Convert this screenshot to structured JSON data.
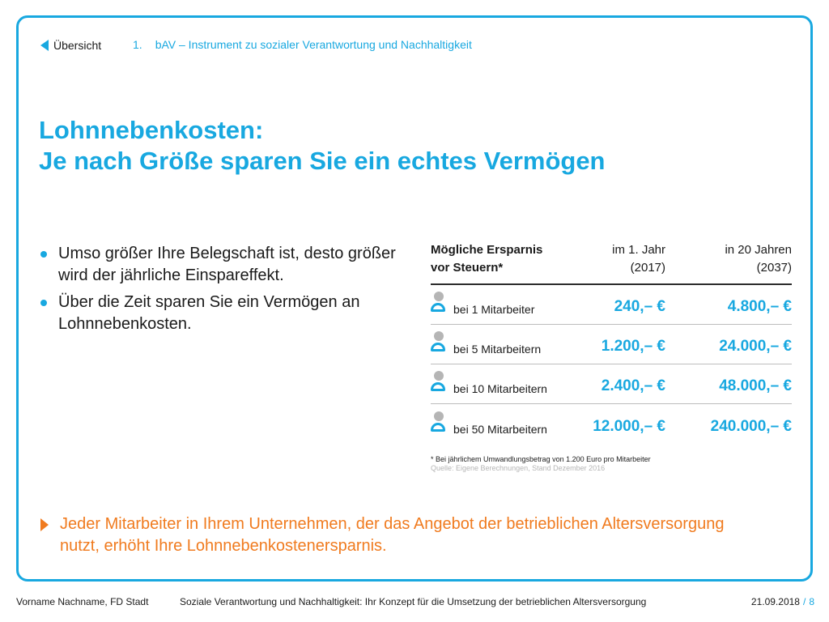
{
  "nav": {
    "back_label": "Übersicht",
    "crumb_number": "1.",
    "crumb_label": "bAV – Instrument zu sozialer Verantwortung und Nachhaltigkeit"
  },
  "title": {
    "line1": "Lohnnebenkosten:",
    "line2": "Je nach Größe sparen Sie ein echtes Vermögen"
  },
  "bullets": [
    "Umso größer Ihre Belegschaft ist, desto größer wird der jährliche Einspareffekt.",
    "Über die Zeit sparen Sie ein Vermögen an Lohnnebenkosten."
  ],
  "table": {
    "header": {
      "label_line1": "Mögliche Ersparnis",
      "label_line2": "vor Steuern*",
      "col1_line1": "im 1. Jahr",
      "col1_line2": "(2017)",
      "col2_line1": "in 20 Jahren",
      "col2_line2": "(2037)"
    },
    "rows": [
      {
        "label": "bei 1 Mitarbeiter",
        "year1": "240,– €",
        "year20": "4.800,– €"
      },
      {
        "label": "bei 5 Mitarbeitern",
        "year1": "1.200,– €",
        "year20": "24.000,– €"
      },
      {
        "label": "bei 10 Mitarbeitern",
        "year1": "2.400,– €",
        "year20": "48.000,– €"
      },
      {
        "label": "bei 50 Mitarbeitern",
        "year1": "12.000,– €",
        "year20": "240.000,– €"
      }
    ],
    "footnote": "* Bei jährlichem Umwandlungsbetrag von 1.200 Euro pro Mitarbeiter",
    "source": "Quelle: Eigene Berechnungen, Stand Dezember 2016"
  },
  "callout": "Jeder Mitarbeiter in Ihrem Unternehmen, der das Angebot der betrieblichen Altersversorgung nutzt, erhöht Ihre Lohnnebenkostenersparnis.",
  "footer": {
    "author": "Vorname Nachname, FD Stadt",
    "subject": "Soziale Verantwortung und Nachhaltigkeit: Ihr Konzept für die Umsetzung der betrieblichen Altersversorgung",
    "date": "21.09.2018",
    "separator": "/",
    "page": "8"
  },
  "colors": {
    "accent": "#18a8e0",
    "highlight": "#f07b1f",
    "icon_head": "#b5b5b5"
  },
  "icons": {
    "back": "triangle-left-icon",
    "person": "person-icon",
    "callout": "triangle-right-icon"
  }
}
